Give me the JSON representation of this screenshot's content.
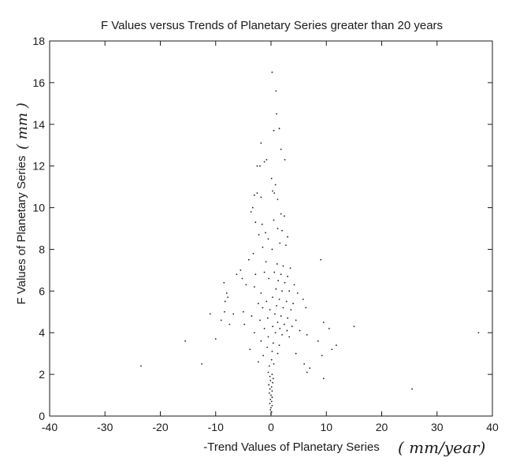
{
  "chart_data": {
    "type": "scatter",
    "title": "F Values versus Trends of Planetary Series greater than 20 years",
    "xlabel": "-Trend Values of Planetary Series",
    "ylabel": "F Values of Planetary Series",
    "x_unit_handwritten": "( mm/year)",
    "y_unit_handwritten": "( mm )",
    "xlim": [
      -40,
      40
    ],
    "ylim": [
      0,
      18
    ],
    "xticks": [
      -40,
      -30,
      -20,
      -10,
      0,
      10,
      20,
      30,
      40
    ],
    "yticks": [
      0,
      2,
      4,
      6,
      8,
      10,
      12,
      14,
      16,
      18
    ],
    "grid": false,
    "legend": "none",
    "point_color": "#1a1a1a",
    "points": [
      [
        0.2,
        16.5
      ],
      [
        0.9,
        15.6
      ],
      [
        1.0,
        14.5
      ],
      [
        1.5,
        13.8
      ],
      [
        0.5,
        13.7
      ],
      [
        -1.8,
        13.1
      ],
      [
        1.8,
        12.8
      ],
      [
        2.5,
        12.3
      ],
      [
        -0.8,
        12.3
      ],
      [
        -1.2,
        12.2
      ],
      [
        -2.5,
        12.0
      ],
      [
        -2.0,
        12.0
      ],
      [
        0.1,
        11.4
      ],
      [
        0.8,
        11.1
      ],
      [
        0.3,
        10.8
      ],
      [
        0.6,
        10.7
      ],
      [
        1.2,
        10.4
      ],
      [
        -2.5,
        10.7
      ],
      [
        -3.0,
        10.6
      ],
      [
        -1.8,
        10.5
      ],
      [
        -3.3,
        10.0
      ],
      [
        -3.6,
        9.8
      ],
      [
        1.8,
        9.7
      ],
      [
        2.4,
        9.6
      ],
      [
        0.5,
        9.4
      ],
      [
        -2.8,
        9.3
      ],
      [
        -1.6,
        9.2
      ],
      [
        1.2,
        9.0
      ],
      [
        2.0,
        8.9
      ],
      [
        -1.0,
        8.8
      ],
      [
        -2.2,
        8.7
      ],
      [
        3.0,
        8.6
      ],
      [
        -0.5,
        8.5
      ],
      [
        1.6,
        8.3
      ],
      [
        2.7,
        8.2
      ],
      [
        -1.5,
        8.1
      ],
      [
        0.2,
        8.0
      ],
      [
        -3.2,
        7.8
      ],
      [
        -4.0,
        7.5
      ],
      [
        -0.9,
        7.4
      ],
      [
        1.1,
        7.3
      ],
      [
        2.2,
        7.2
      ],
      [
        3.5,
        7.1
      ],
      [
        9.0,
        7.5
      ],
      [
        -5.5,
        7.0
      ],
      [
        -6.2,
        6.8
      ],
      [
        -2.8,
        6.8
      ],
      [
        -1.2,
        6.9
      ],
      [
        0.6,
        6.9
      ],
      [
        1.8,
        6.8
      ],
      [
        3.0,
        6.7
      ],
      [
        -0.4,
        6.6
      ],
      [
        1.3,
        6.5
      ],
      [
        2.5,
        6.4
      ],
      [
        4.2,
        6.3
      ],
      [
        -4.5,
        6.3
      ],
      [
        -8.5,
        6.4
      ],
      [
        -3.0,
        6.2
      ],
      [
        0.9,
        6.1
      ],
      [
        2.0,
        6.0
      ],
      [
        3.3,
        6.0
      ],
      [
        -1.8,
        5.9
      ],
      [
        -8.0,
        5.9
      ],
      [
        -7.8,
        5.7
      ],
      [
        -8.3,
        5.5
      ],
      [
        0.3,
        5.7
      ],
      [
        1.5,
        5.6
      ],
      [
        2.8,
        5.5
      ],
      [
        4.0,
        5.4
      ],
      [
        5.8,
        5.6
      ],
      [
        -0.8,
        5.5
      ],
      [
        -2.3,
        5.4
      ],
      [
        1.0,
        5.3
      ],
      [
        2.2,
        5.2
      ],
      [
        3.6,
        5.1
      ],
      [
        -1.5,
        5.2
      ],
      [
        -0.2,
        5.1
      ],
      [
        6.3,
        5.2
      ],
      [
        -5.0,
        5.0
      ],
      [
        -8.4,
        5.0
      ],
      [
        -6.8,
        4.9
      ],
      [
        -3.5,
        4.8
      ],
      [
        0.7,
        4.9
      ],
      [
        1.8,
        4.8
      ],
      [
        3.0,
        4.7
      ],
      [
        4.5,
        4.6
      ],
      [
        -0.6,
        4.7
      ],
      [
        -2.0,
        4.6
      ],
      [
        1.2,
        4.5
      ],
      [
        2.4,
        4.4
      ],
      [
        3.8,
        4.3
      ],
      [
        9.5,
        4.5
      ],
      [
        -9.0,
        4.6
      ],
      [
        -4.8,
        4.4
      ],
      [
        0.3,
        4.3
      ],
      [
        1.6,
        4.2
      ],
      [
        2.9,
        4.1
      ],
      [
        -7.5,
        4.4
      ],
      [
        -1.2,
        4.2
      ],
      [
        5.2,
        4.1
      ],
      [
        15.0,
        4.3
      ],
      [
        -3.0,
        4.0
      ],
      [
        0.8,
        4.0
      ],
      [
        2.0,
        3.9
      ],
      [
        3.3,
        3.8
      ],
      [
        -0.5,
        3.8
      ],
      [
        6.5,
        3.9
      ],
      [
        8.5,
        3.6
      ],
      [
        -1.8,
        3.6
      ],
      [
        0.4,
        3.5
      ],
      [
        1.5,
        3.4
      ],
      [
        11.8,
        3.4
      ],
      [
        11.0,
        3.2
      ],
      [
        -15.5,
        3.6
      ],
      [
        -10.0,
        3.7
      ],
      [
        -3.8,
        3.2
      ],
      [
        -0.7,
        3.3
      ],
      [
        0.2,
        3.1
      ],
      [
        1.2,
        3.0
      ],
      [
        -1.4,
        2.9
      ],
      [
        4.5,
        3.0
      ],
      [
        9.2,
        2.9
      ],
      [
        -2.3,
        2.6
      ],
      [
        0.1,
        2.7
      ],
      [
        0.5,
        2.5
      ],
      [
        -0.3,
        2.4
      ],
      [
        6.0,
        2.5
      ],
      [
        7.0,
        2.3
      ],
      [
        6.5,
        2.1
      ],
      [
        -12.5,
        2.5
      ],
      [
        -23.5,
        2.4
      ],
      [
        -0.5,
        2.1
      ],
      [
        0.2,
        2.0
      ],
      [
        -0.2,
        1.9
      ],
      [
        0.4,
        1.8
      ],
      [
        9.5,
        1.8
      ],
      [
        -0.1,
        1.7
      ],
      [
        0.3,
        1.6
      ],
      [
        -0.4,
        1.5
      ],
      [
        0.1,
        1.4
      ],
      [
        -0.2,
        1.3
      ],
      [
        0.2,
        1.2
      ],
      [
        25.5,
        1.3
      ],
      [
        -0.3,
        1.1
      ],
      [
        0.0,
        1.0
      ],
      [
        0.2,
        0.9
      ],
      [
        -0.1,
        0.8
      ],
      [
        0.1,
        0.7
      ],
      [
        -0.2,
        0.6
      ],
      [
        0.2,
        0.5
      ],
      [
        0.0,
        0.4
      ],
      [
        -0.1,
        0.3
      ],
      [
        0.1,
        0.2
      ],
      [
        0.0,
        0.1
      ],
      [
        37.5,
        4.0
      ],
      [
        10.5,
        4.2
      ],
      [
        -11.0,
        4.9
      ],
      [
        4.8,
        5.9
      ],
      [
        -5.2,
        6.6
      ]
    ]
  }
}
